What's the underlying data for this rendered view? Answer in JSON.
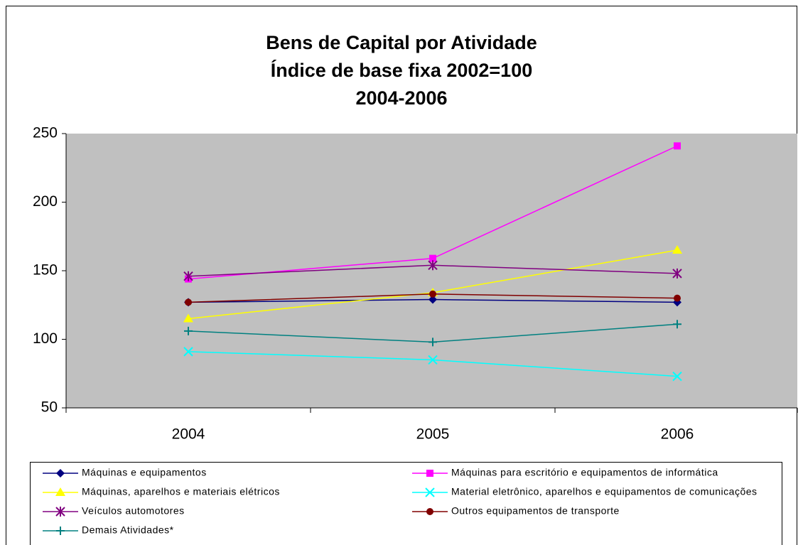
{
  "chart_data": {
    "type": "line",
    "title": [
      "Bens de Capital por Atividade",
      "Índice de base fixa  2002=100",
      "2004-2006"
    ],
    "categories": [
      "2004",
      "2005",
      "2006"
    ],
    "series": [
      {
        "name": "Máquinas e equipamentos",
        "color": "#000080",
        "marker": "diamond",
        "values": [
          127,
          129,
          127
        ]
      },
      {
        "name": "Máquinas para escritório e equipamentos de informática",
        "color": "#ff00ff",
        "marker": "square",
        "values": [
          144,
          159,
          241
        ]
      },
      {
        "name": "Máquinas, aparelhos e materiais elétricos",
        "color": "#ffff00",
        "marker": "triangle",
        "values": [
          115,
          134,
          165
        ]
      },
      {
        "name": "Material eletrônico, aparelhos e equipamentos de comunicações",
        "color": "#00ffff",
        "marker": "x",
        "values": [
          91,
          85,
          73
        ]
      },
      {
        "name": "Veículos automotores",
        "color": "#800080",
        "marker": "star",
        "values": [
          146,
          154,
          148
        ]
      },
      {
        "name": "Outros equipamentos de transporte",
        "color": "#800000",
        "marker": "circle",
        "values": [
          127,
          133,
          130
        ]
      },
      {
        "name": "Demais Atividades*",
        "color": "#008080",
        "marker": "plus",
        "values": [
          106,
          98,
          111
        ]
      }
    ],
    "ylim": [
      50,
      250
    ],
    "yticks": [
      50,
      100,
      150,
      200,
      250
    ],
    "grid": false
  }
}
